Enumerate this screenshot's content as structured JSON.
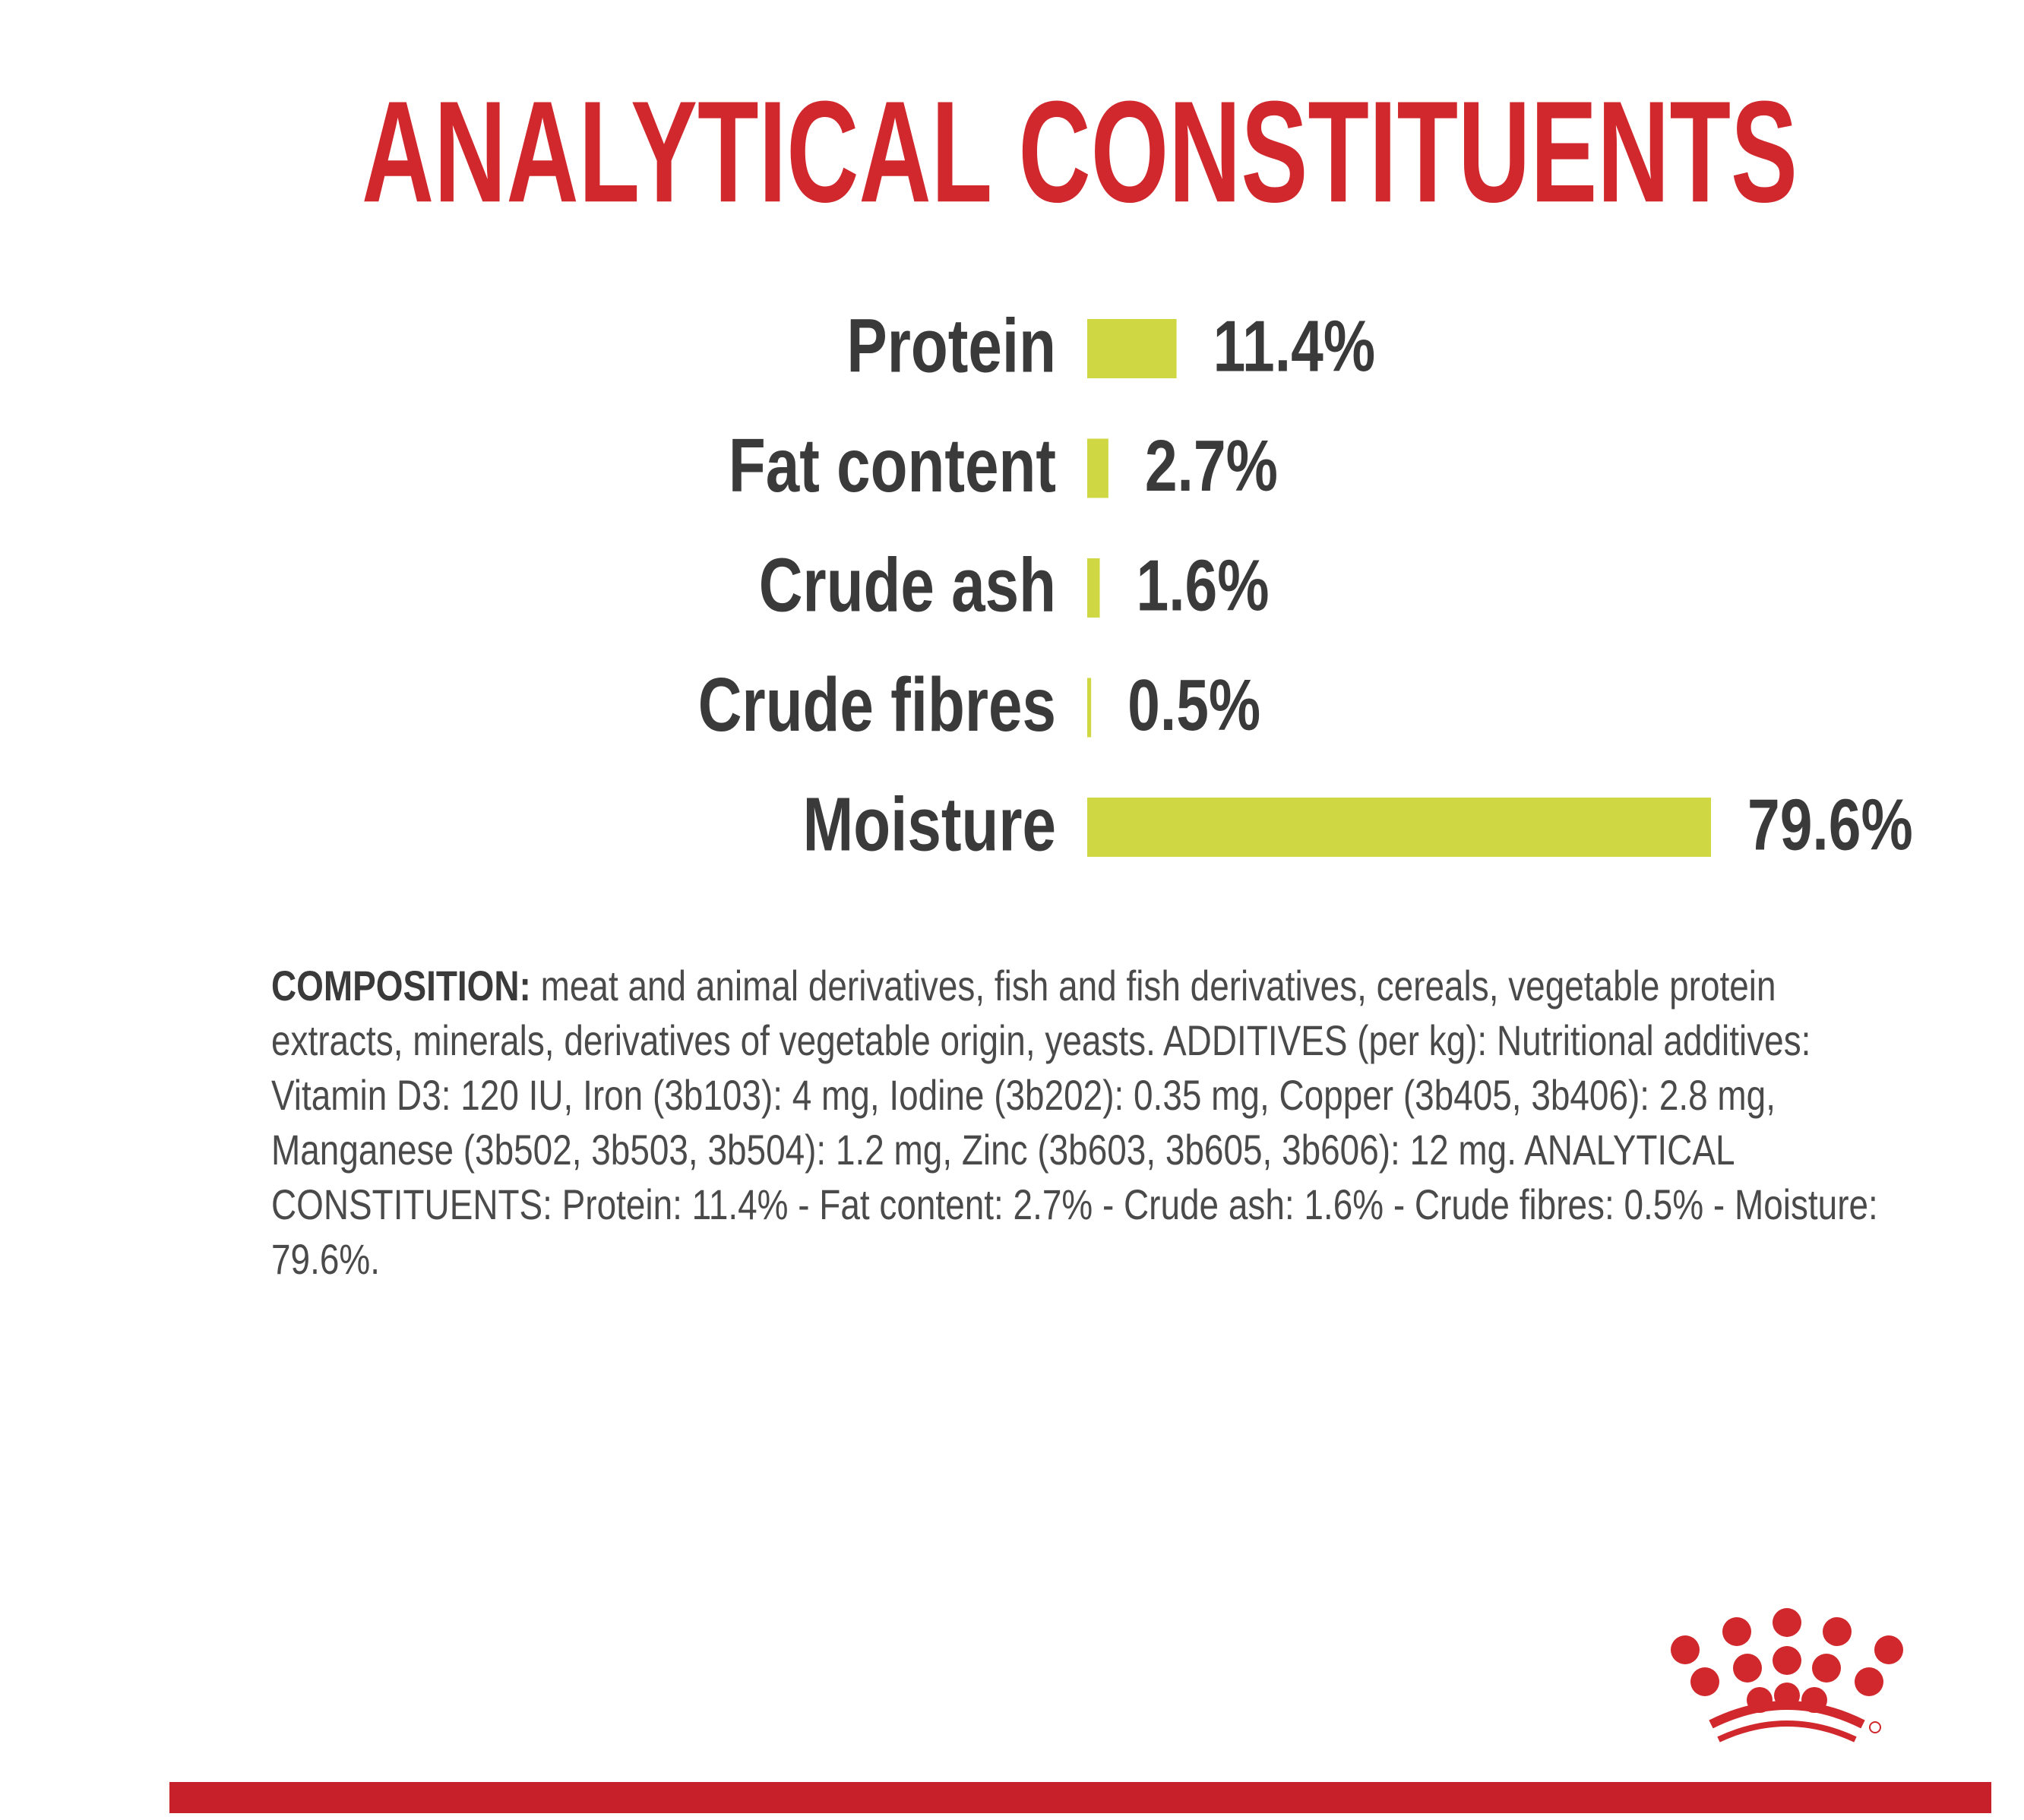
{
  "chart_data": {
    "type": "bar",
    "orientation": "horizontal",
    "title": "ANALYTICAL CONSTITUENTS",
    "categories": [
      "Protein",
      "Fat content",
      "Crude ash",
      "Crude fibres",
      "Moisture"
    ],
    "values": [
      11.4,
      2.7,
      1.6,
      0.5,
      79.6
    ],
    "value_labels": [
      "11.4%",
      "2.7%",
      "1.6%",
      "0.5%",
      "79.6%"
    ],
    "color": "#cfd843"
  },
  "composition": {
    "label": "COMPOSITION:",
    "text": "meat and animal derivatives, fish and fish derivatives, cereals, vegetable protein extracts, minerals, derivatives of vegetable origin, yeasts. ADDITIVES (per kg): Nutritional additives: Vitamin D3: 120 IU, Iron (3b103): 4 mg, Iodine (3b202): 0.35 mg, Copper (3b405, 3b406): 2.8 mg, Manganese (3b502, 3b503, 3b504): 1.2 mg, Zinc (3b603, 3b605, 3b606): 12 mg. ANALYTICAL CONSTITUENTS: Protein: 11.4% - Fat content: 2.7% - Crude ash: 1.6% - Crude fibres: 0.5% - Moisture: 79.6%."
  }
}
